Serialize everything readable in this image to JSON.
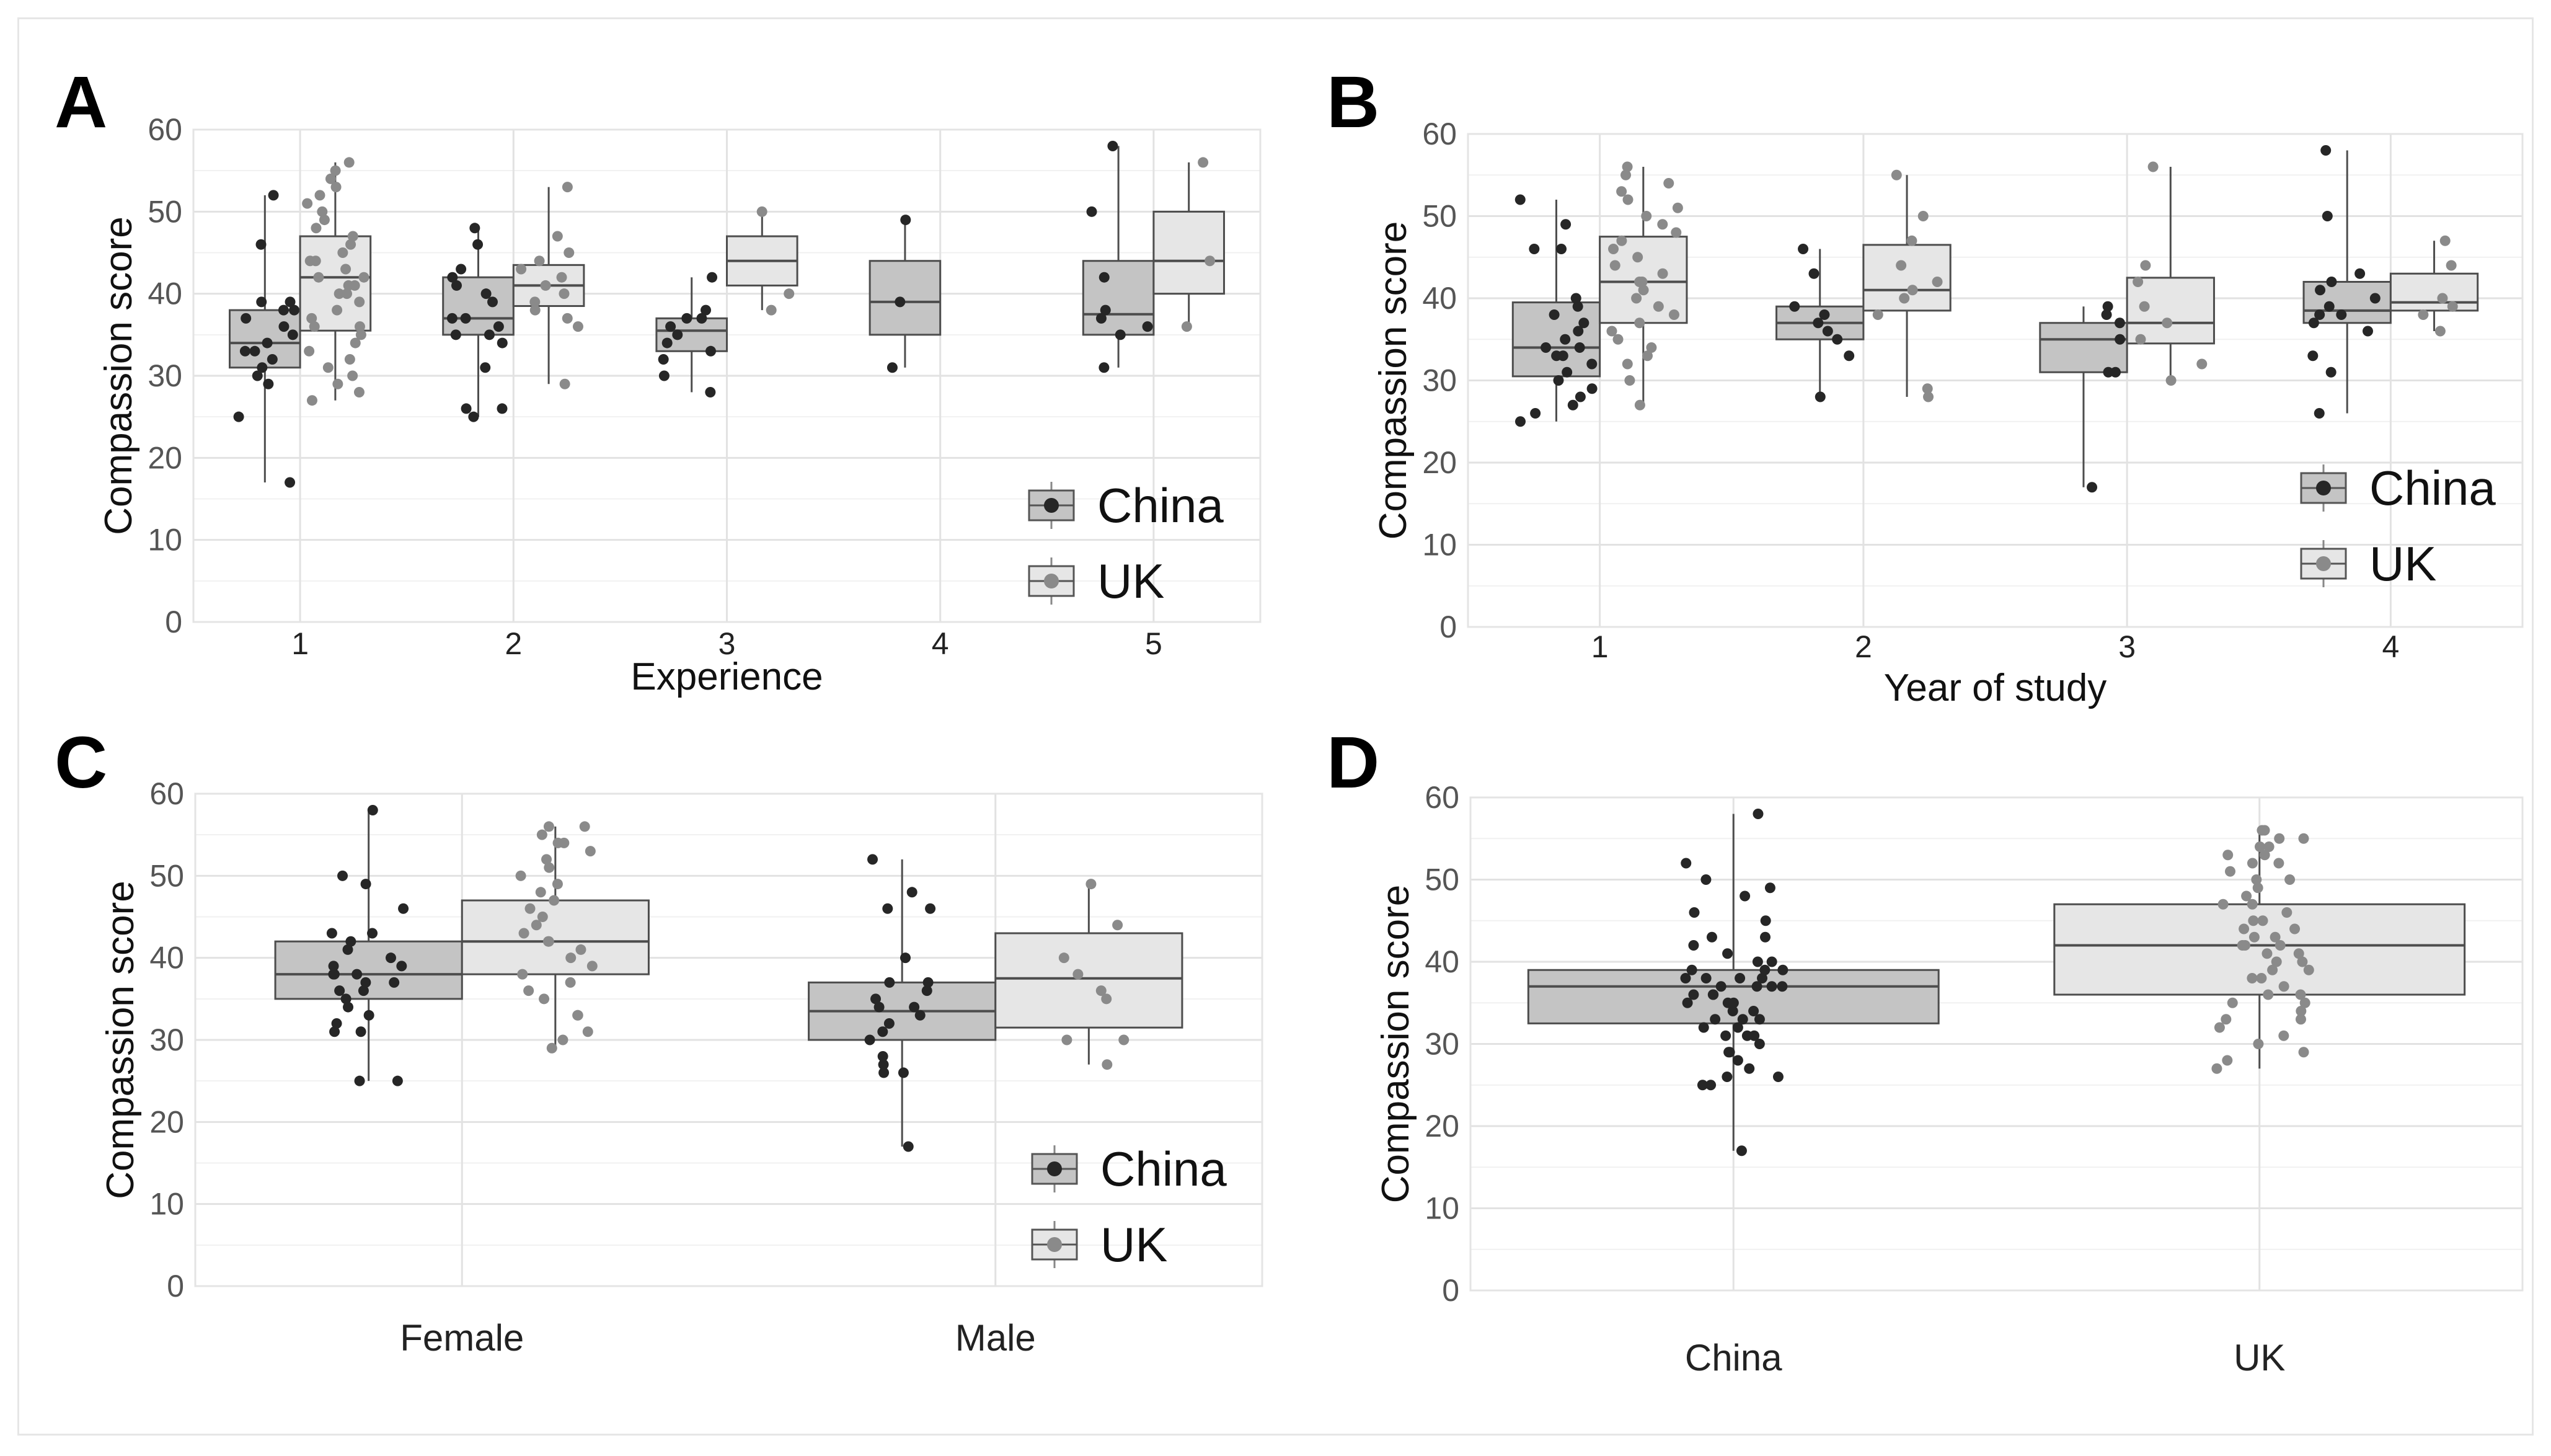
{
  "colors": {
    "china_fill": "#c4c4c4",
    "uk_fill": "#e6e6e6",
    "china_point": "#262626",
    "uk_point": "#8a8a8a",
    "box_stroke": "#4d4d4d",
    "grid": "#e2e2e2",
    "axis_text": "#555555"
  },
  "chart_data": [
    {
      "panel_label": "A",
      "type": "box",
      "ylabel": "Compassion score",
      "xlabel": "Experience",
      "ylim": [
        0,
        60
      ],
      "yticks": [
        0,
        10,
        20,
        30,
        40,
        50,
        60
      ],
      "categories": [
        "1",
        "2",
        "3",
        "4",
        "5"
      ],
      "legend": {
        "placement": "bottom-right",
        "entries": [
          "China",
          "UK"
        ]
      },
      "series": [
        {
          "name": "China",
          "boxes": [
            {
              "category": "1",
              "q1": 31,
              "median": 34,
              "q3": 38,
              "min": 17,
              "max": 52,
              "points": [
                17,
                25,
                29,
                30,
                31,
                32,
                33,
                33,
                34,
                35,
                36,
                37,
                38,
                38,
                39,
                39,
                46,
                52
              ]
            },
            {
              "category": "2",
              "q1": 35,
              "median": 37,
              "q3": 42,
              "min": 25,
              "max": 48,
              "points": [
                25,
                26,
                26,
                31,
                34,
                35,
                35,
                36,
                37,
                37,
                39,
                40,
                41,
                42,
                43,
                46,
                48
              ]
            },
            {
              "category": "3",
              "q1": 33,
              "median": 35.5,
              "q3": 37,
              "min": 28,
              "max": 42,
              "points": [
                28,
                30,
                32,
                33,
                34,
                35,
                36,
                37,
                37,
                38,
                42
              ]
            },
            {
              "category": "4",
              "q1": 35,
              "median": 39,
              "q3": 44,
              "min": 31,
              "max": 49,
              "points": [
                31,
                39,
                49
              ]
            },
            {
              "category": "5",
              "q1": 35,
              "median": 37.5,
              "q3": 44,
              "min": 31,
              "max": 58,
              "points": [
                31,
                35,
                36,
                37,
                38,
                42,
                50,
                58
              ]
            }
          ]
        },
        {
          "name": "UK",
          "boxes": [
            {
              "category": "1",
              "q1": 35.5,
              "median": 42,
              "q3": 47,
              "min": 27,
              "max": 56,
              "points": [
                27,
                28,
                29,
                30,
                31,
                32,
                33,
                34,
                35,
                36,
                36,
                37,
                38,
                39,
                40,
                40,
                41,
                41,
                42,
                42,
                43,
                44,
                44,
                45,
                46,
                47,
                48,
                49,
                50,
                51,
                52,
                53,
                54,
                55,
                56
              ]
            },
            {
              "category": "2",
              "q1": 38.5,
              "median": 41,
              "q3": 43.5,
              "min": 29,
              "max": 53,
              "points": [
                29,
                36,
                37,
                38,
                39,
                40,
                41,
                42,
                43,
                44,
                45,
                47,
                53
              ]
            },
            {
              "category": "3",
              "q1": 41,
              "median": 44,
              "q3": 47,
              "min": 38,
              "max": 50,
              "points": [
                38,
                40,
                50
              ]
            },
            {
              "category": "5",
              "q1": 40,
              "median": 44,
              "q3": 50,
              "min": 36,
              "max": 56,
              "points": [
                36,
                44,
                56
              ]
            }
          ]
        }
      ]
    },
    {
      "panel_label": "B",
      "type": "box",
      "ylabel": "Compassion score",
      "xlabel": "Year of study",
      "ylim": [
        0,
        60
      ],
      "yticks": [
        0,
        10,
        20,
        30,
        40,
        50,
        60
      ],
      "categories": [
        "1",
        "2",
        "3",
        "4"
      ],
      "legend": {
        "placement": "middle-right",
        "entries": [
          "China",
          "UK"
        ]
      },
      "series": [
        {
          "name": "China",
          "boxes": [
            {
              "category": "1",
              "q1": 30.5,
              "median": 34,
              "q3": 39.5,
              "min": 25,
              "max": 52,
              "points": [
                25,
                26,
                27,
                28,
                29,
                30,
                31,
                32,
                33,
                33,
                34,
                34,
                35,
                36,
                37,
                38,
                39,
                40,
                46,
                46,
                49,
                52
              ]
            },
            {
              "category": "2",
              "q1": 35,
              "median": 37,
              "q3": 39,
              "min": 28,
              "max": 46,
              "points": [
                28,
                33,
                35,
                36,
                37,
                38,
                39,
                43,
                46
              ]
            },
            {
              "category": "3",
              "q1": 31,
              "median": 35,
              "q3": 37,
              "min": 17,
              "max": 39,
              "points": [
                17,
                31,
                31,
                35,
                37,
                38,
                39
              ]
            },
            {
              "category": "4",
              "q1": 37,
              "median": 38.5,
              "q3": 42,
              "min": 26,
              "max": 58,
              "points": [
                26,
                31,
                33,
                36,
                37,
                38,
                38,
                39,
                40,
                41,
                42,
                43,
                50,
                58
              ]
            }
          ]
        },
        {
          "name": "UK",
          "boxes": [
            {
              "category": "1",
              "q1": 37,
              "median": 42,
              "q3": 47.5,
              "min": 27,
              "max": 56,
              "points": [
                27,
                30,
                32,
                33,
                34,
                35,
                36,
                37,
                38,
                39,
                40,
                41,
                42,
                42,
                43,
                44,
                45,
                46,
                47,
                48,
                49,
                50,
                51,
                52,
                53,
                54,
                55,
                56
              ]
            },
            {
              "category": "2",
              "q1": 38.5,
              "median": 41,
              "q3": 46.5,
              "min": 28,
              "max": 55,
              "points": [
                28,
                29,
                38,
                40,
                41,
                42,
                44,
                47,
                50,
                55
              ]
            },
            {
              "category": "3",
              "q1": 34.5,
              "median": 37,
              "q3": 42.5,
              "min": 30,
              "max": 56,
              "points": [
                30,
                32,
                35,
                37,
                39,
                42,
                44,
                56
              ]
            },
            {
              "category": "4",
              "q1": 38.5,
              "median": 39.5,
              "q3": 43,
              "min": 36,
              "max": 47,
              "points": [
                36,
                38,
                39,
                40,
                44,
                47
              ]
            }
          ]
        }
      ]
    },
    {
      "panel_label": "C",
      "type": "box",
      "ylabel": "Compassion score",
      "xlabel": "",
      "ylim": [
        0,
        60
      ],
      "yticks": [
        0,
        10,
        20,
        30,
        40,
        50,
        60
      ],
      "categories": [
        "Female",
        "Male"
      ],
      "legend": {
        "placement": "bottom-right",
        "entries": [
          "China",
          "UK"
        ]
      },
      "series": [
        {
          "name": "China",
          "boxes": [
            {
              "category": "Female",
              "q1": 35,
              "median": 38,
              "q3": 42,
              "min": 25,
              "max": 58,
              "points": [
                25,
                25,
                31,
                31,
                32,
                33,
                34,
                35,
                36,
                36,
                37,
                37,
                38,
                38,
                38,
                39,
                39,
                40,
                41,
                42,
                43,
                43,
                46,
                49,
                50,
                58
              ]
            },
            {
              "category": "Male",
              "q1": 30,
              "median": 33.5,
              "q3": 37,
              "min": 17,
              "max": 52,
              "points": [
                17,
                26,
                26,
                27,
                28,
                30,
                31,
                32,
                33,
                34,
                34,
                35,
                36,
                37,
                37,
                40,
                46,
                46,
                48,
                52
              ]
            }
          ]
        },
        {
          "name": "UK",
          "boxes": [
            {
              "category": "Female",
              "q1": 38,
              "median": 42,
              "q3": 47,
              "min": 29,
              "max": 56,
              "points": [
                29,
                30,
                31,
                33,
                33,
                35,
                36,
                37,
                38,
                39,
                40,
                41,
                42,
                42,
                43,
                44,
                45,
                46,
                47,
                48,
                49,
                50,
                51,
                52,
                53,
                54,
                54,
                55,
                56,
                56
              ]
            },
            {
              "category": "Male",
              "q1": 31.5,
              "median": 37.5,
              "q3": 43,
              "min": 27,
              "max": 49,
              "points": [
                27,
                30,
                30,
                35,
                36,
                38,
                40,
                44,
                49
              ]
            }
          ]
        }
      ]
    },
    {
      "panel_label": "D",
      "type": "box",
      "ylabel": "Compassion score",
      "xlabel": "",
      "ylim": [
        0,
        60
      ],
      "yticks": [
        0,
        10,
        20,
        30,
        40,
        50,
        60
      ],
      "categories": [
        "China",
        "UK"
      ],
      "legend": null,
      "series": [
        {
          "name": "China",
          "boxes": [
            {
              "category": "China",
              "q1": 32.5,
              "median": 37,
              "q3": 39,
              "min": 17,
              "max": 58,
              "points": [
                17,
                25,
                25,
                26,
                26,
                27,
                28,
                29,
                29,
                30,
                31,
                31,
                31,
                32,
                32,
                33,
                33,
                33,
                34,
                34,
                35,
                35,
                35,
                36,
                36,
                36,
                37,
                37,
                37,
                37,
                38,
                38,
                38,
                38,
                39,
                39,
                39,
                40,
                40,
                41,
                42,
                43,
                43,
                45,
                46,
                48,
                49,
                50,
                52,
                58
              ]
            }
          ]
        },
        {
          "name": "UK",
          "boxes": [
            {
              "category": "UK",
              "q1": 36,
              "median": 42,
              "q3": 47,
              "min": 27,
              "max": 56,
              "points": [
                27,
                28,
                29,
                30,
                31,
                32,
                33,
                33,
                34,
                35,
                35,
                36,
                36,
                37,
                38,
                38,
                39,
                39,
                40,
                40,
                41,
                41,
                42,
                42,
                42,
                43,
                43,
                44,
                44,
                45,
                45,
                46,
                47,
                47,
                48,
                49,
                50,
                50,
                51,
                52,
                52,
                53,
                53,
                54,
                54,
                55,
                55,
                56,
                56
              ]
            }
          ]
        }
      ]
    }
  ]
}
